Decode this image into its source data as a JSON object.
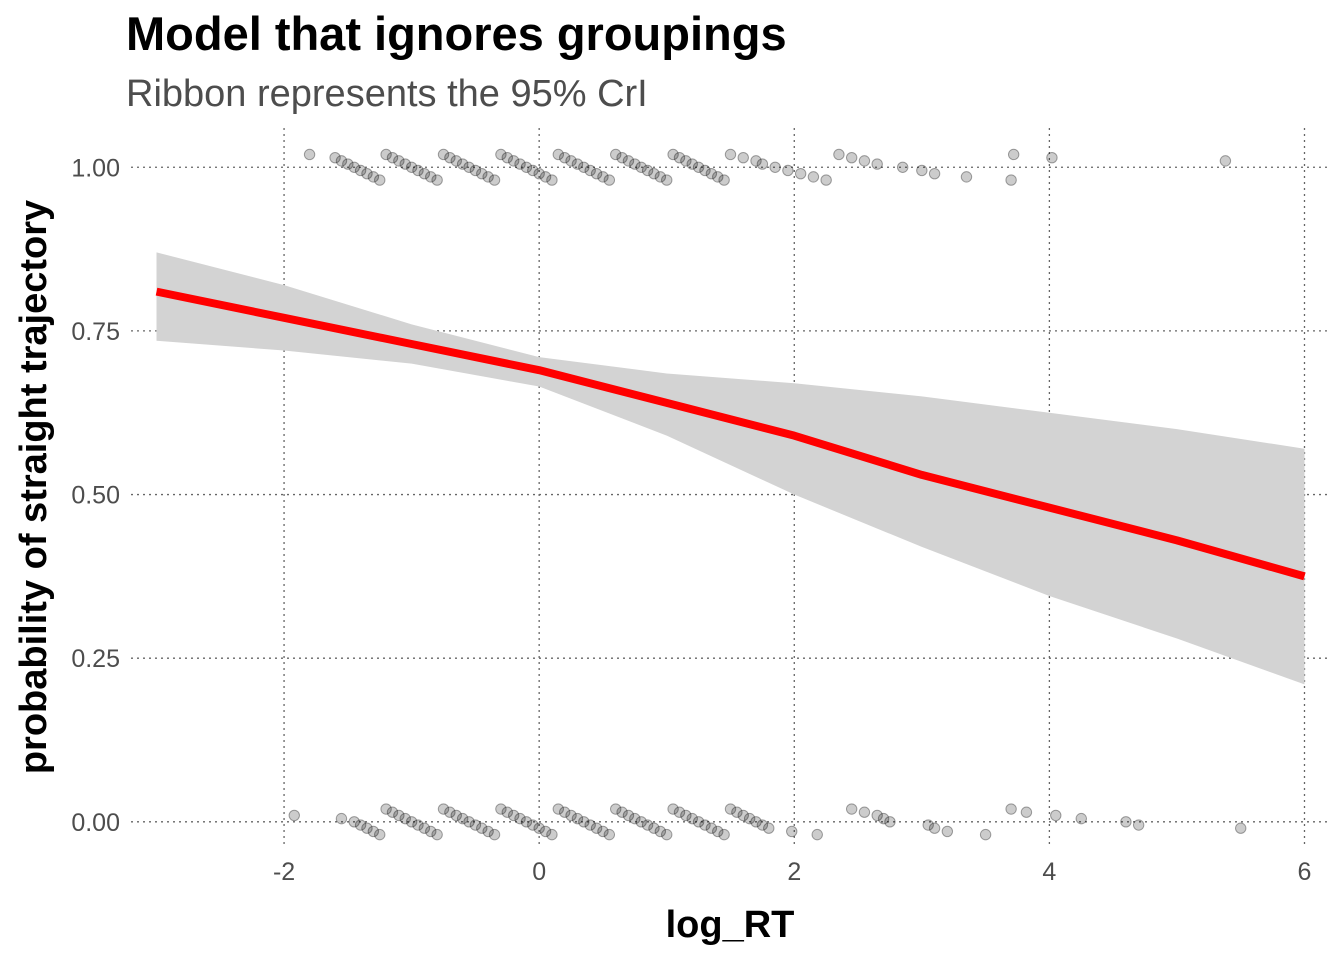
{
  "chart_data": {
    "type": "line",
    "title": "Model that ignores groupings",
    "subtitle": "Ribbon represents the 95% CrI",
    "xlabel": "log_RT",
    "ylabel": "probability of straight trajectory",
    "xlim": [
      -3.2,
      6.2
    ],
    "ylim": [
      -0.04,
      1.06
    ],
    "x_ticks": [
      -2,
      0,
      2,
      4,
      6
    ],
    "x_tick_labels": [
      "-2",
      "0",
      "2",
      "4",
      "6"
    ],
    "y_ticks": [
      0,
      0.25,
      0.5,
      0.75,
      1
    ],
    "y_tick_labels": [
      "0.00",
      "0.25",
      "0.50",
      "0.75",
      "1.00"
    ],
    "grid": true,
    "legend": "none",
    "series": [
      {
        "type": "line",
        "color": "#ff0000",
        "x": [
          -3,
          -2,
          -1,
          0,
          1,
          2,
          3,
          4,
          5,
          6
        ],
        "y": [
          0.81,
          0.77,
          0.73,
          0.69,
          0.64,
          0.59,
          0.53,
          0.48,
          0.43,
          0.375
        ]
      },
      {
        "type": "ribbon",
        "color": "#d3d3d3",
        "x": [
          -3,
          -2,
          -1,
          0,
          1,
          2,
          3,
          4,
          5,
          6
        ],
        "lower": [
          0.735,
          0.72,
          0.7,
          0.665,
          0.59,
          0.5,
          0.42,
          0.345,
          0.28,
          0.21
        ],
        "upper": [
          0.87,
          0.82,
          0.76,
          0.71,
          0.685,
          0.67,
          0.65,
          0.625,
          0.6,
          0.57
        ]
      },
      {
        "type": "scatter",
        "color": "#000000",
        "opacity": 0.2,
        "y": 1,
        "x": [
          -1.8,
          -1.6,
          -1.55,
          -1.5,
          -1.45,
          -1.4,
          -1.35,
          -1.3,
          -1.25,
          -1.2,
          -1.15,
          -1.1,
          -1.05,
          -1.0,
          -0.95,
          -0.9,
          -0.85,
          -0.8,
          -0.75,
          -0.7,
          -0.65,
          -0.6,
          -0.55,
          -0.5,
          -0.45,
          -0.4,
          -0.35,
          -0.3,
          -0.25,
          -0.2,
          -0.15,
          -0.1,
          -0.05,
          0.0,
          0.05,
          0.1,
          0.15,
          0.2,
          0.25,
          0.3,
          0.35,
          0.4,
          0.45,
          0.5,
          0.55,
          0.6,
          0.65,
          0.7,
          0.75,
          0.8,
          0.85,
          0.9,
          0.95,
          1.0,
          1.05,
          1.1,
          1.15,
          1.2,
          1.25,
          1.3,
          1.35,
          1.4,
          1.45,
          1.5,
          1.6,
          1.7,
          1.75,
          1.85,
          1.95,
          2.05,
          2.15,
          2.25,
          2.35,
          2.45,
          2.55,
          2.65,
          2.85,
          3.0,
          3.1,
          3.35,
          3.7,
          3.72,
          4.02,
          5.38
        ]
      },
      {
        "type": "scatter",
        "color": "#000000",
        "opacity": 0.2,
        "y": 0,
        "x": [
          -1.92,
          -1.55,
          -1.45,
          -1.4,
          -1.35,
          -1.3,
          -1.25,
          -1.2,
          -1.15,
          -1.1,
          -1.05,
          -1.0,
          -0.95,
          -0.9,
          -0.85,
          -0.8,
          -0.75,
          -0.7,
          -0.65,
          -0.6,
          -0.55,
          -0.5,
          -0.45,
          -0.4,
          -0.35,
          -0.3,
          -0.25,
          -0.2,
          -0.15,
          -0.1,
          -0.05,
          0.0,
          0.05,
          0.1,
          0.15,
          0.2,
          0.25,
          0.3,
          0.35,
          0.4,
          0.45,
          0.5,
          0.55,
          0.6,
          0.65,
          0.7,
          0.75,
          0.8,
          0.85,
          0.9,
          0.95,
          1.0,
          1.05,
          1.1,
          1.15,
          1.2,
          1.25,
          1.3,
          1.35,
          1.4,
          1.45,
          1.5,
          1.55,
          1.6,
          1.65,
          1.7,
          1.75,
          1.8,
          1.98,
          2.18,
          2.45,
          2.55,
          2.65,
          2.7,
          2.75,
          3.05,
          3.1,
          3.2,
          3.5,
          3.7,
          3.82,
          4.05,
          4.25,
          4.6,
          4.7,
          5.5
        ]
      }
    ]
  }
}
